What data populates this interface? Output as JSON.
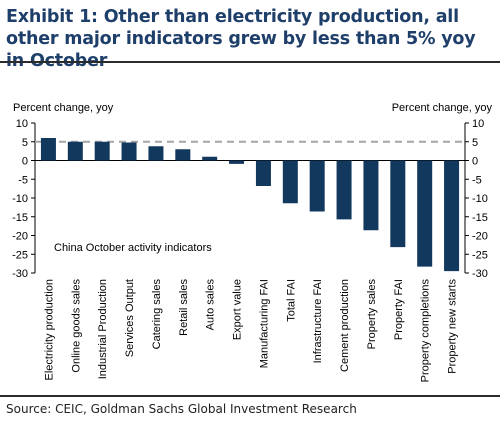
{
  "header": {
    "title": "Exhibit 1: Other than electricity production, all other major indicators grew by less than 5% yoy in October"
  },
  "footer": {
    "source": "Source: CEIC, Goldman Sachs Global Investment Research"
  },
  "chart_data": {
    "type": "bar",
    "ylabel_left": "Percent change, yoy",
    "ylabel_right": "Percent change, yoy",
    "annotation": "China October activity indicators",
    "ylim": [
      -30,
      10
    ],
    "yticks": [
      10,
      5,
      0,
      -5,
      -10,
      -15,
      -20,
      -25,
      -30
    ],
    "reference_line": 5,
    "grid": false,
    "bar_color": "#12385e",
    "reference_line_color": "#a6a6a6",
    "categories": [
      "Electricity production",
      "Online goods sales",
      "Industrial Production",
      "Services Output",
      "Catering sales",
      "Retail sales",
      "Auto sales",
      "Export value",
      "Manufacturing FAI",
      "Total FAI",
      "Infrastructure FAI",
      "Cement production",
      "Property sales",
      "Property FAI",
      "Property completions",
      "Property new starts"
    ],
    "values": [
      6.0,
      5.0,
      5.0,
      4.8,
      3.8,
      3.0,
      1.0,
      -0.9,
      -6.8,
      -11.4,
      -13.6,
      -15.7,
      -18.6,
      -23.1,
      -28.3,
      -29.5
    ]
  }
}
